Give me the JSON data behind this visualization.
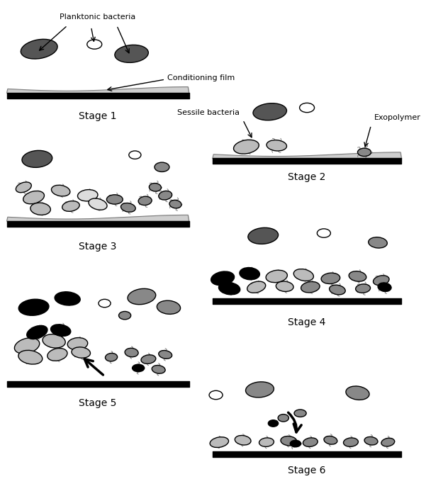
{
  "background_color": "#ffffff",
  "text_color": "#000000",
  "stage_labels": [
    "Stage 1",
    "Stage 2",
    "Stage 3",
    "Stage 4",
    "Stage 5",
    "Stage 6"
  ],
  "dark_gray": "#555555",
  "medium_gray": "#888888",
  "light_gray": "#bbbbbb",
  "black": "#000000",
  "very_light_gray": "#dddddd"
}
